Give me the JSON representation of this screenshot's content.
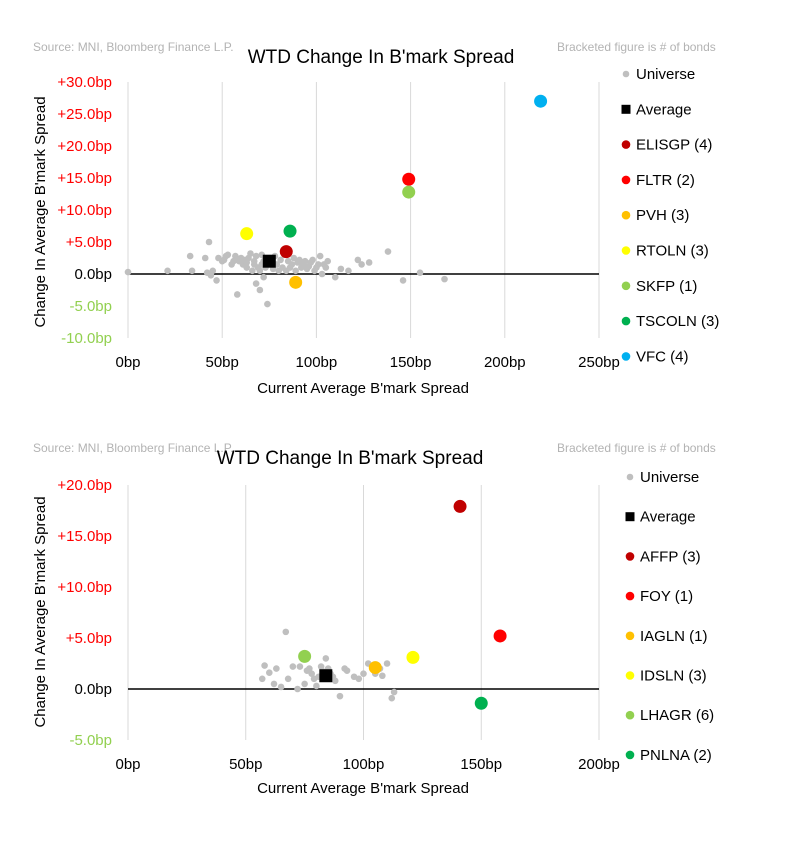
{
  "chart_data": [
    {
      "type": "scatter",
      "title": "WTD Change In B'mark Spread",
      "source": "Source: MNI, Bloomberg Finance L.P.",
      "note": "Bracketed figure is # of bonds",
      "xlabel": "Current Average B'mark Spread",
      "ylabel": "Change In Average B'mark Spread",
      "xlim": [
        0,
        250
      ],
      "ylim": [
        -10,
        30
      ],
      "x_ticks": [
        0,
        50,
        100,
        150,
        200,
        250
      ],
      "x_tick_labels": [
        "0bp",
        "50bp",
        "100bp",
        "150bp",
        "200bp",
        "250bp"
      ],
      "y_ticks": [
        30,
        25,
        20,
        15,
        10,
        5,
        0,
        -5,
        -10
      ],
      "y_tick_labels": [
        "+30.0bp",
        "+25.0bp",
        "+20.0bp",
        "+15.0bp",
        "+10.0bp",
        "+5.0bp",
        "0.0bp",
        "-5.0bp",
        "-10.0bp"
      ],
      "universe": {
        "name": "Universe",
        "color": "#bfbfbf",
        "x": [
          0,
          21,
          33,
          34,
          41,
          42,
          43,
          44,
          45,
          47,
          48,
          50,
          51,
          52,
          53,
          55,
          56,
          57,
          58,
          58,
          59,
          60,
          61,
          62,
          63,
          63,
          64,
          65,
          66,
          67,
          67,
          68,
          68,
          69,
          70,
          70,
          71,
          71,
          72,
          72,
          73,
          73,
          74,
          75,
          77,
          78,
          79,
          80,
          81,
          82,
          83,
          84,
          85,
          86,
          87,
          88,
          89,
          90,
          91,
          92,
          93,
          94,
          95,
          96,
          97,
          98,
          99,
          100,
          101,
          102,
          103,
          104,
          105,
          106,
          110,
          113,
          117,
          122,
          124,
          128,
          138,
          146,
          155,
          168
        ],
        "y": [
          0.3,
          0.5,
          2.8,
          0.5,
          2.5,
          0.2,
          5.0,
          -0.2,
          0.5,
          -1.0,
          2.5,
          2.0,
          2.2,
          2.8,
          3.0,
          1.5,
          2.0,
          2.8,
          2.2,
          -3.2,
          2.0,
          2.5,
          1.5,
          2.2,
          1.0,
          1.8,
          2.5,
          3.2,
          0.5,
          1.5,
          2.0,
          -1.5,
          2.8,
          1.0,
          0.5,
          -2.5,
          1.5,
          3.0,
          2.0,
          -0.5,
          1.0,
          2.2,
          -4.7,
          1.8,
          0.8,
          2.8,
          1.5,
          0.5,
          2.2,
          1.0,
          3.0,
          0.5,
          2.0,
          1.0,
          1.5,
          2.5,
          0.5,
          1.8,
          2.2,
          1.0,
          1.5,
          2.0,
          0.8,
          1.2,
          1.8,
          2.2,
          0.5,
          1.0,
          1.5,
          2.8,
          0.0,
          1.5,
          1.0,
          2.0,
          -0.5,
          0.8,
          0.5,
          2.2,
          1.5,
          1.8,
          3.5,
          -1.0,
          0.2,
          -0.8
        ]
      },
      "average": {
        "name": "Average",
        "x": 75,
        "y": 2.0,
        "color": "#000000"
      },
      "series": [
        {
          "name": "ELISGP",
          "bonds": "(4)",
          "x": 84,
          "y": 3.5,
          "color": "#c00000"
        },
        {
          "name": "FLTR",
          "bonds": "(2)",
          "x": 149,
          "y": 14.8,
          "color": "#ff0000"
        },
        {
          "name": "PVH",
          "bonds": "(3)",
          "x": 89,
          "y": -1.3,
          "color": "#ffc000"
        },
        {
          "name": "RTOLN",
          "bonds": "(3)",
          "x": 63,
          "y": 6.3,
          "color": "#ffff00"
        },
        {
          "name": "SKFP",
          "bonds": "(1)",
          "x": 149,
          "y": 12.8,
          "color": "#92d050"
        },
        {
          "name": "TSCOLN",
          "bonds": "(3)",
          "x": 86,
          "y": 6.7,
          "color": "#00b050"
        },
        {
          "name": "VFC",
          "bonds": "(4)",
          "x": 219,
          "y": 27.0,
          "color": "#00b0f0"
        }
      ]
    },
    {
      "type": "scatter",
      "title": "WTD Change In B'mark Spread",
      "source": "Source: MNI, Bloomberg Finance L.P.",
      "note": "Bracketed figure is # of bonds",
      "xlabel": "Current Average B'mark Spread",
      "ylabel": "Change In Average B'mark Spread",
      "xlim": [
        0,
        200
      ],
      "ylim": [
        -5,
        20
      ],
      "x_ticks": [
        0,
        50,
        100,
        150,
        200
      ],
      "x_tick_labels": [
        "0bp",
        "50bp",
        "100bp",
        "150bp",
        "200bp"
      ],
      "y_ticks": [
        20,
        15,
        10,
        5,
        0,
        -5
      ],
      "y_tick_labels": [
        "+20.0bp",
        "+15.0bp",
        "+10.0bp",
        "+5.0bp",
        "0.0bp",
        "-5.0bp"
      ],
      "universe": {
        "name": "Universe",
        "color": "#bfbfbf",
        "x": [
          57,
          58,
          60,
          62,
          63,
          65,
          67,
          68,
          70,
          72,
          73,
          74,
          75,
          76,
          77,
          78,
          79,
          80,
          81,
          82,
          83,
          84,
          85,
          86,
          87,
          88,
          90,
          92,
          93,
          96,
          98,
          100,
          102,
          105,
          107,
          108,
          110,
          112,
          113
        ],
        "y": [
          1.0,
          2.3,
          1.6,
          0.5,
          2.0,
          0.2,
          5.6,
          1.0,
          2.2,
          0.0,
          2.2,
          3.1,
          0.5,
          1.8,
          2.0,
          1.5,
          1.0,
          0.3,
          1.2,
          2.2,
          1.7,
          3.0,
          2.0,
          1.5,
          1.2,
          0.8,
          -0.7,
          2.0,
          1.8,
          1.2,
          1.0,
          1.5,
          2.5,
          1.5,
          2.0,
          1.3,
          2.5,
          -0.9,
          -0.3
        ]
      },
      "average": {
        "name": "Average",
        "x": 84,
        "y": 1.3,
        "color": "#000000"
      },
      "series": [
        {
          "name": "AFFP",
          "bonds": "(3)",
          "x": 141,
          "y": 17.9,
          "color": "#c00000"
        },
        {
          "name": "FOY",
          "bonds": "(1)",
          "x": 158,
          "y": 5.2,
          "color": "#ff0000"
        },
        {
          "name": "IAGLN",
          "bonds": "(1)",
          "x": 105,
          "y": 2.1,
          "color": "#ffc000"
        },
        {
          "name": "IDSLN",
          "bonds": "(3)",
          "x": 121,
          "y": 3.1,
          "color": "#ffff00"
        },
        {
          "name": "LHAGR",
          "bonds": "(6)",
          "x": 75,
          "y": 3.2,
          "color": "#92d050"
        },
        {
          "name": "PNLNA",
          "bonds": "(2)",
          "x": 150,
          "y": -1.4,
          "color": "#00b050"
        }
      ]
    }
  ]
}
